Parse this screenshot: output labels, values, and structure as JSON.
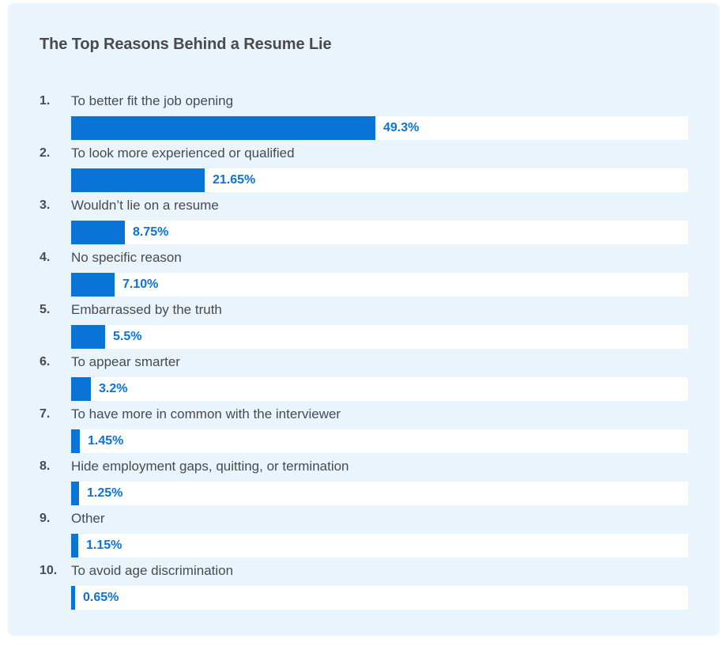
{
  "chart_data": {
    "type": "bar",
    "title": "The Top Reasons Behind a Resume Lie",
    "orientation": "horizontal",
    "bar_color": "#0a73d6",
    "track_color": "#ffffff",
    "background_color": "#eaf4fd",
    "xlim": [
      0,
      100
    ],
    "items": [
      {
        "rank": "1.",
        "label": "To better fit the job opening",
        "value": 49.3,
        "value_label": "49.3%"
      },
      {
        "rank": "2.",
        "label": "To look more experienced or qualified",
        "value": 21.65,
        "value_label": "21.65%"
      },
      {
        "rank": "3.",
        "label": "Wouldn’t lie on a resume",
        "value": 8.75,
        "value_label": "8.75%"
      },
      {
        "rank": "4.",
        "label": "No specific reason",
        "value": 7.1,
        "value_label": "7.10%"
      },
      {
        "rank": "5.",
        "label": "Embarrassed by the truth",
        "value": 5.5,
        "value_label": "5.5%"
      },
      {
        "rank": "6.",
        "label": "To appear smarter",
        "value": 3.2,
        "value_label": "3.2%"
      },
      {
        "rank": "7.",
        "label": "To have more in common with the interviewer",
        "value": 1.45,
        "value_label": "1.45%"
      },
      {
        "rank": "8.",
        "label": "Hide employment gaps, quitting, or termination",
        "value": 1.25,
        "value_label": "1.25%"
      },
      {
        "rank": "9.",
        "label": "Other",
        "value": 1.15,
        "value_label": "1.15%"
      },
      {
        "rank": "10.",
        "label": "To avoid age discrimination",
        "value": 0.65,
        "value_label": "0.65%"
      }
    ]
  }
}
